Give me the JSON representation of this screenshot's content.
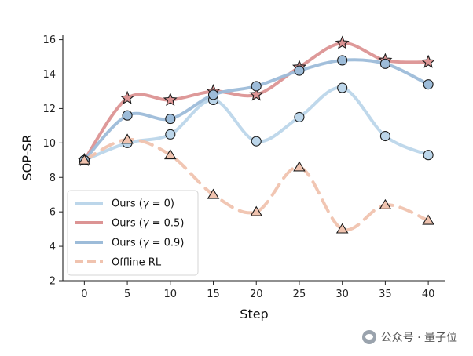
{
  "chart_data": {
    "type": "line",
    "xlabel": "Step",
    "ylabel": "SOP-SR",
    "x": [
      0,
      5,
      10,
      15,
      20,
      25,
      30,
      35,
      40
    ],
    "xticks": [
      "0",
      "5",
      "10",
      "15",
      "20",
      "25",
      "30",
      "35",
      "40"
    ],
    "yticks": [
      "2",
      "4",
      "6",
      "8",
      "10",
      "12",
      "14",
      "16"
    ],
    "ylim": [
      2,
      16.3
    ],
    "xlim": [
      -2.5,
      42
    ],
    "grid": false,
    "legend_position": "lower-left",
    "series": [
      {
        "name": "Ours (γ = 0)",
        "legend_prefix": "Ours (",
        "legend_greek": "γ",
        "legend_suffix": " = 0)",
        "values": [
          9.0,
          10.0,
          10.5,
          12.5,
          10.1,
          11.5,
          13.2,
          10.4,
          9.3
        ],
        "color": "#bcd6ea",
        "marker": "circle",
        "dashed": false
      },
      {
        "name": "Ours (γ = 0.5)",
        "legend_prefix": "Ours (",
        "legend_greek": "γ",
        "legend_suffix": " = 0.5)",
        "values": [
          9.0,
          12.6,
          12.5,
          13.0,
          12.8,
          14.4,
          15.8,
          14.8,
          14.7
        ],
        "color": "#dc9494",
        "marker": "star",
        "dashed": false
      },
      {
        "name": "Ours (γ = 0.9)",
        "legend_prefix": "Ours (",
        "legend_greek": "γ",
        "legend_suffix": " = 0.9)",
        "values": [
          9.0,
          11.6,
          11.4,
          12.8,
          13.3,
          14.2,
          14.8,
          14.6,
          13.4
        ],
        "color": "#9dbcd9",
        "marker": "circle",
        "dashed": false
      },
      {
        "name": "Offline RL",
        "legend_prefix": "Offline RL",
        "legend_greek": "",
        "legend_suffix": "",
        "values": [
          9.0,
          10.2,
          9.3,
          7.0,
          6.0,
          8.6,
          5.0,
          6.4,
          5.5
        ],
        "color": "#f0c3af",
        "marker": "triangle",
        "dashed": true
      }
    ]
  },
  "watermark": {
    "text": "公众号 · 量子位",
    "icon": "wechat-icon"
  }
}
